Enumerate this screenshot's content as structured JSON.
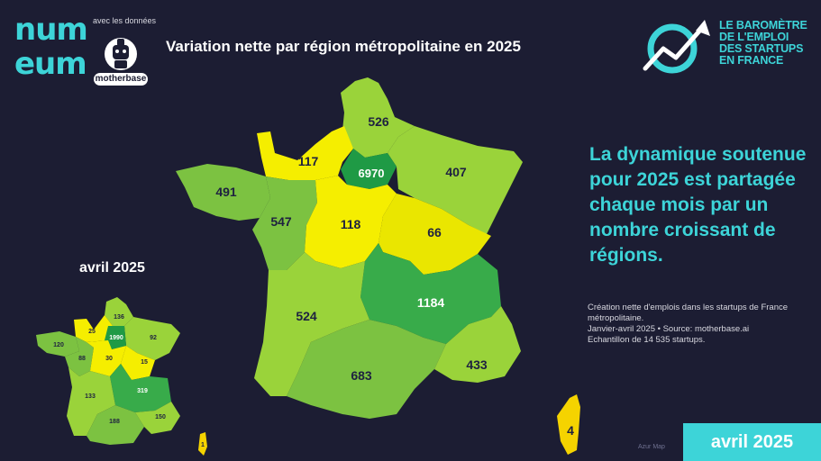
{
  "logo": {
    "numeum_line1": "num",
    "numeum_line2": "eum"
  },
  "with_data_label": "avec les données",
  "motherbase_label": "motherbase",
  "title": "Variation nette par région métropolitaine en 2025",
  "barometer": {
    "line1": "LE BAROMÈTRE",
    "line2": "DE L'EMPLOI",
    "line3": "DES STARTUPS",
    "line4": "EN FRANCE"
  },
  "headline": "La dynamique soutenue pour 2025 est partagée chaque mois par un nombre croissant de régions.",
  "source": {
    "line1": "Création nette d'emplois dans les startups de France",
    "line2": "métropolitaine.",
    "line3": "Janvier-avril 2025 • Source: motherbase.ai",
    "line4": "Echantillon de 14 535 startups."
  },
  "small_map_label": "avril 2025",
  "badge_label": "avril 2025",
  "main_map": {
    "values": {
      "hauts_de_france": "526",
      "normandie": "117",
      "ile_de_france": "6970",
      "grand_est": "407",
      "bretagne": "491",
      "pays_de_la_loire": "547",
      "centre_val_de_loire": "118",
      "bourgogne_franche_comte": "66",
      "auvergne_rhone_alpes": "1184",
      "nouvelle_aquitaine": "524",
      "occitanie": "683",
      "provence_alpes_cote_d_azur": "433",
      "corse": "4"
    }
  },
  "small_map": {
    "values": {
      "hauts_de_france": "136",
      "normandie": "25",
      "ile_de_france": "1990",
      "grand_est": "92",
      "bretagne": "120",
      "pays_de_la_loire": "88",
      "centre_val_de_loire": "30",
      "bourgogne_franche_comte": "15",
      "auvergne_rhone_alpes": "319",
      "nouvelle_aquitaine": "133",
      "occitanie": "188",
      "provence_alpes_cote_d_azur": "150",
      "corse": "1"
    }
  },
  "map_credit": "Azur Map",
  "colors": {
    "background": "#1c1d33",
    "accent": "#3dd4d8",
    "yellow": "#f5ee00",
    "yellow_green": "#c8e22e",
    "light_green": "#9ad33a",
    "mid_green": "#7cc241",
    "dark_green": "#38ab4a",
    "deep_green": "#1f9a45"
  }
}
